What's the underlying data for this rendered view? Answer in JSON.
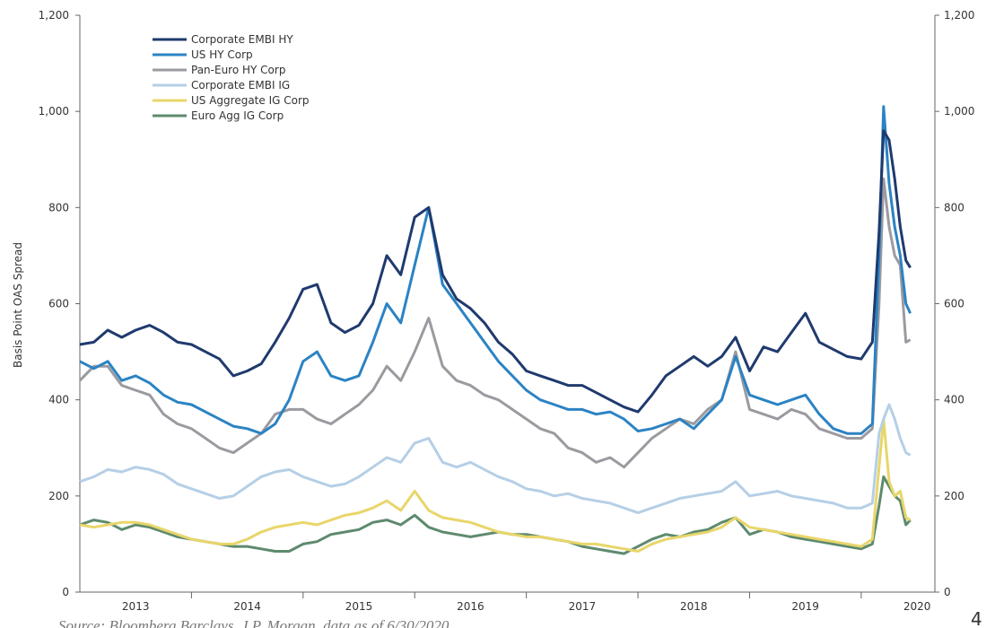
{
  "chart_data": {
    "type": "line",
    "ylabel": "Basis Point OAS Spread",
    "source": "Source: Bloomberg Barclays, J.P. Morgan, data as of 6/30/2020",
    "page_number": "4",
    "x": [
      2013,
      2013.125,
      2013.25,
      2013.375,
      2013.5,
      2013.625,
      2013.75,
      2013.875,
      2014,
      2014.125,
      2014.25,
      2014.375,
      2014.5,
      2014.625,
      2014.75,
      2014.875,
      2015,
      2015.125,
      2015.25,
      2015.375,
      2015.5,
      2015.625,
      2015.75,
      2015.875,
      2016,
      2016.125,
      2016.25,
      2016.375,
      2016.5,
      2016.625,
      2016.75,
      2016.875,
      2017,
      2017.125,
      2017.25,
      2017.375,
      2017.5,
      2017.625,
      2017.75,
      2017.875,
      2018,
      2018.125,
      2018.25,
      2018.375,
      2018.5,
      2018.625,
      2018.75,
      2018.875,
      2019,
      2019.125,
      2019.25,
      2019.375,
      2019.5,
      2019.625,
      2019.75,
      2019.875,
      2020,
      2020.1,
      2020.16,
      2020.2,
      2020.25,
      2020.3,
      2020.35,
      2020.4,
      2020.44
    ],
    "xlim": [
      2013,
      2020.66
    ],
    "xticks": [
      {
        "value": 2013.5,
        "label": "2013"
      },
      {
        "value": 2014.5,
        "label": "2014"
      },
      {
        "value": 2015.5,
        "label": "2015"
      },
      {
        "value": 2016.5,
        "label": "2016"
      },
      {
        "value": 2017.5,
        "label": "2017"
      },
      {
        "value": 2018.5,
        "label": "2018"
      },
      {
        "value": 2019.5,
        "label": "2019"
      },
      {
        "value": 2020.5,
        "label": "2020"
      }
    ],
    "ylim": [
      0,
      1200
    ],
    "yticks": [
      0,
      200,
      400,
      600,
      800,
      {
        "value": 1000,
        "label": "1,000"
      },
      {
        "value": 1200,
        "label": "1,200"
      }
    ],
    "y2lim": [
      0,
      1200
    ],
    "y2ticks": [
      0,
      200,
      400,
      600,
      800,
      {
        "value": 1000,
        "label": "1,000"
      },
      {
        "value": 1200,
        "label": "1,200"
      }
    ],
    "legend": "upper left",
    "series": [
      {
        "name": "Corporate EMBI HY",
        "color": "#1f3a6e",
        "values": [
          515,
          520,
          545,
          530,
          545,
          555,
          540,
          520,
          515,
          500,
          485,
          450,
          460,
          475,
          520,
          570,
          630,
          640,
          560,
          540,
          555,
          600,
          700,
          660,
          780,
          800,
          660,
          610,
          590,
          560,
          520,
          495,
          460,
          450,
          440,
          430,
          430,
          415,
          400,
          385,
          375,
          410,
          450,
          470,
          490,
          470,
          490,
          530,
          460,
          510,
          500,
          540,
          580,
          520,
          505,
          490,
          485,
          520,
          750,
          960,
          940,
          860,
          760,
          690,
          675
        ]
      },
      {
        "name": "US HY Corp",
        "color": "#2b83c3",
        "values": [
          480,
          465,
          480,
          440,
          450,
          435,
          410,
          395,
          390,
          375,
          360,
          345,
          340,
          330,
          350,
          400,
          480,
          500,
          450,
          440,
          450,
          520,
          600,
          560,
          680,
          800,
          640,
          600,
          560,
          520,
          480,
          450,
          420,
          400,
          390,
          380,
          380,
          370,
          375,
          360,
          335,
          340,
          350,
          360,
          340,
          370,
          400,
          490,
          410,
          400,
          390,
          400,
          410,
          370,
          340,
          330,
          330,
          350,
          700,
          1010,
          850,
          760,
          700,
          600,
          580
        ]
      },
      {
        "name": "Pan-Euro HY Corp",
        "color": "#9b9aa0",
        "values": [
          440,
          470,
          470,
          430,
          420,
          410,
          370,
          350,
          340,
          320,
          300,
          290,
          310,
          330,
          370,
          380,
          380,
          360,
          350,
          370,
          390,
          420,
          470,
          440,
          500,
          570,
          470,
          440,
          430,
          410,
          400,
          380,
          360,
          340,
          330,
          300,
          290,
          270,
          280,
          260,
          290,
          320,
          340,
          360,
          350,
          380,
          400,
          500,
          380,
          370,
          360,
          380,
          370,
          340,
          330,
          320,
          320,
          340,
          600,
          860,
          760,
          700,
          680,
          520,
          525
        ]
      },
      {
        "name": "Corporate EMBI IG",
        "color": "#b5cfe6",
        "values": [
          230,
          240,
          255,
          250,
          260,
          255,
          245,
          225,
          215,
          205,
          195,
          200,
          220,
          240,
          250,
          255,
          240,
          230,
          220,
          225,
          240,
          260,
          280,
          270,
          310,
          320,
          270,
          260,
          270,
          255,
          240,
          230,
          215,
          210,
          200,
          205,
          195,
          190,
          185,
          175,
          165,
          175,
          185,
          195,
          200,
          205,
          210,
          230,
          200,
          205,
          210,
          200,
          195,
          190,
          185,
          175,
          175,
          185,
          330,
          360,
          390,
          360,
          320,
          290,
          285
        ]
      },
      {
        "name": "US Aggregate IG Corp",
        "color": "#e8d66a",
        "values": [
          140,
          135,
          140,
          145,
          145,
          140,
          130,
          120,
          110,
          105,
          100,
          100,
          110,
          125,
          135,
          140,
          145,
          140,
          150,
          160,
          165,
          175,
          190,
          170,
          210,
          170,
          155,
          150,
          145,
          135,
          125,
          120,
          115,
          115,
          110,
          105,
          100,
          100,
          95,
          90,
          85,
          100,
          110,
          115,
          120,
          125,
          135,
          155,
          135,
          130,
          125,
          120,
          115,
          110,
          105,
          100,
          95,
          110,
          260,
          360,
          230,
          200,
          210,
          155,
          150
        ]
      },
      {
        "name": "Euro Agg IG Corp",
        "color": "#5e8a6e",
        "values": [
          140,
          150,
          145,
          130,
          140,
          135,
          125,
          115,
          110,
          105,
          100,
          95,
          95,
          90,
          85,
          85,
          100,
          105,
          120,
          125,
          130,
          145,
          150,
          140,
          160,
          135,
          125,
          120,
          115,
          120,
          125,
          120,
          120,
          115,
          110,
          105,
          95,
          90,
          85,
          80,
          95,
          110,
          120,
          115,
          125,
          130,
          145,
          155,
          120,
          130,
          125,
          115,
          110,
          105,
          100,
          95,
          90,
          100,
          180,
          240,
          220,
          200,
          190,
          140,
          150
        ]
      }
    ]
  }
}
